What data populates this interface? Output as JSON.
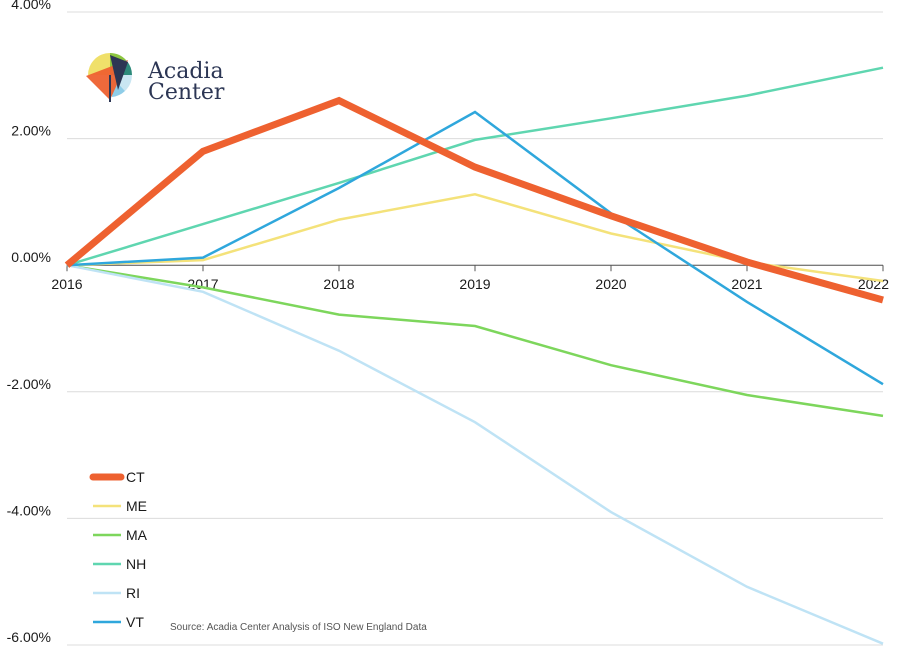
{
  "chart_data": {
    "type": "line",
    "title": "",
    "xlabel": "",
    "ylabel": "",
    "x": [
      "2016",
      "2017",
      "2018",
      "2019",
      "2020",
      "2021",
      "2022"
    ],
    "ylim": [
      -6,
      4
    ],
    "y_ticks": [
      4,
      2,
      0,
      -2,
      -4,
      -6
    ],
    "y_tick_labels": [
      "4.00%",
      "2.00%",
      "0.00%",
      "-2.00%",
      "-4.00%",
      "-6.00%"
    ],
    "grid": true,
    "legend_position": "bottom-left",
    "series": [
      {
        "name": "CT",
        "color": "#ee6130",
        "width": 7,
        "values": [
          0.0,
          1.8,
          2.6,
          1.55,
          0.78,
          0.05,
          -0.55
        ]
      },
      {
        "name": "ME",
        "color": "#f4e27a",
        "width": 2.5,
        "values": [
          0.0,
          0.08,
          0.72,
          1.12,
          0.5,
          0.05,
          -0.25
        ]
      },
      {
        "name": "MA",
        "color": "#7dd65c",
        "width": 2.5,
        "values": [
          0.0,
          -0.35,
          -0.78,
          -0.96,
          -1.58,
          -2.05,
          -2.38
        ]
      },
      {
        "name": "NH",
        "color": "#5fd6b0",
        "width": 2.5,
        "values": [
          0.0,
          0.65,
          1.3,
          1.98,
          2.32,
          2.68,
          3.12
        ]
      },
      {
        "name": "RI",
        "color": "#bfe3f5",
        "width": 2.5,
        "values": [
          0.0,
          -0.42,
          -1.35,
          -2.48,
          -3.9,
          -5.08,
          -5.98
        ]
      },
      {
        "name": "VT",
        "color": "#2fa7dc",
        "width": 2.5,
        "values": [
          0.0,
          0.12,
          1.22,
          2.42,
          0.82,
          -0.58,
          -1.88
        ]
      }
    ],
    "source_note": "Source: Acadia Center Analysis of ISO New England Data"
  },
  "logo": {
    "line1": "Acadia",
    "line2": "Center"
  }
}
